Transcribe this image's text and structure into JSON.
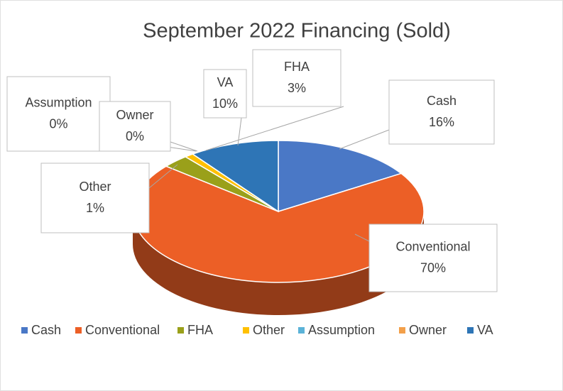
{
  "chart_data": {
    "type": "pie",
    "title": "September 2022 Financing (Sold)",
    "categories": [
      "Cash",
      "Conventional",
      "FHA",
      "Other",
      "Assumption",
      "Owner",
      "VA"
    ],
    "values": [
      16,
      70,
      3,
      1,
      0,
      0,
      10
    ],
    "value_labels": [
      "16%",
      "70%",
      "3%",
      "1%",
      "0%",
      "0%",
      "10%"
    ],
    "colors": [
      "#4a78c6",
      "#ec5f26",
      "#9aa01a",
      "#ffc000",
      "#5bb3d8",
      "#f3a04a",
      "#2e75b6"
    ],
    "legend": "bottom"
  }
}
